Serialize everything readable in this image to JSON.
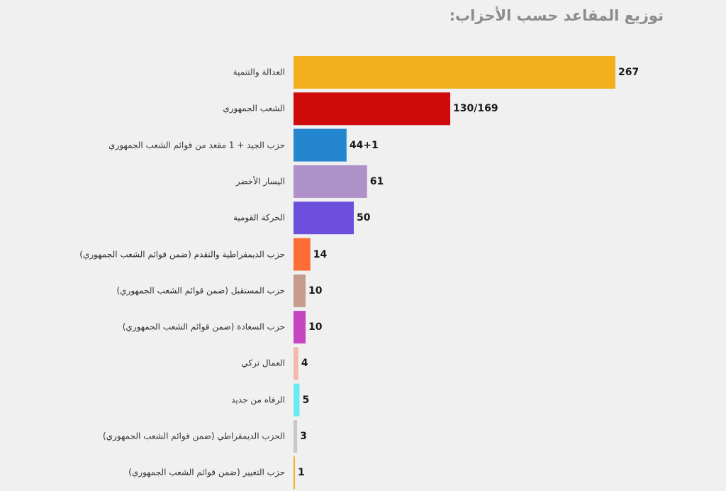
{
  "chart_data": {
    "type": "bar",
    "orientation": "horizontal",
    "title": "توزيع المقاعد حسب الأحزاب:",
    "xlim": [
      0,
      267
    ],
    "grid": false,
    "legend": "none",
    "categories": [
      "العدالة والتنمية",
      "الشعب الجمهوري",
      "حزب الجيد + 1 مقعد من قوائم الشعب الجمهوري",
      "اليسار الأخضر",
      "الحركة القومية",
      "حزب الديمقراطية والتقدم (ضمن قوائم الشعب الجمهوري)",
      "حزب المستقبل (ضمن قوائم الشعب الجمهوري)",
      "حزب السعادة (ضمن قوائم الشعب الجمهوري)",
      "العمال تركي",
      "الرفاه من جديد",
      "الحزب الديمقراطي (ضمن قوائم الشعب الجمهوري)",
      "حزب التغيير (ضمن قوائم الشعب الجمهوري)"
    ],
    "values": [
      267,
      130,
      44,
      61,
      50,
      14,
      10,
      10,
      4,
      5,
      3,
      1
    ],
    "value_labels": [
      "267",
      "130/169",
      "44+1",
      "61",
      "50",
      "14",
      "10",
      "10",
      "4",
      "5",
      "3",
      "1"
    ],
    "colors": [
      "#f2b01e",
      "#cf0a0a",
      "#2386cf",
      "#ad91c8",
      "#6b4fdc",
      "#ff6d37",
      "#c49b8c",
      "#c545c0",
      "#f5b8ad",
      "#66ecf2",
      "#c8c8c8",
      "#f2b01e"
    ]
  }
}
